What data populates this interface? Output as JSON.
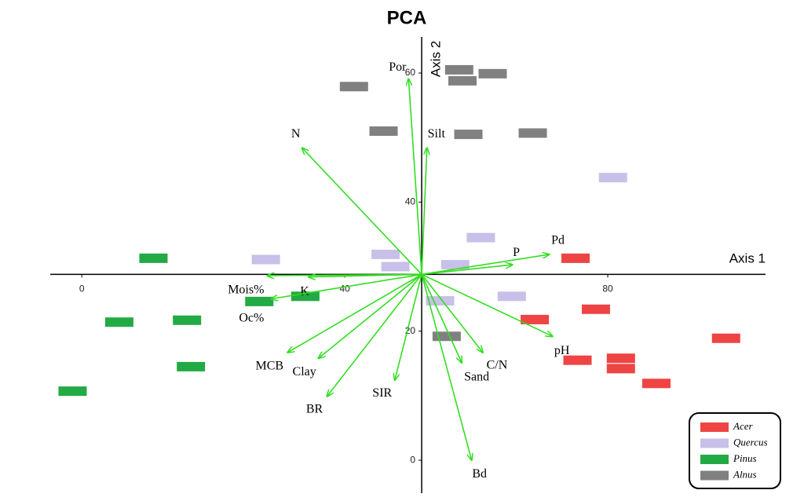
{
  "chart_data": {
    "type": "biplot",
    "title": "PCA",
    "x_label": "Axis 1",
    "y_label": "Axis 2",
    "xlim": [
      -4.8,
      104
    ],
    "ylim": [
      -5.1,
      65.6
    ],
    "origin": [
      51.7,
      28.8
    ],
    "xticks": [
      0,
      40,
      80
    ],
    "yticks": [
      0,
      20,
      40,
      60
    ],
    "legend": "bottom-right",
    "series": [
      {
        "name": "Acer",
        "color": "#ee4444",
        "x": [
          75.1,
          68.9,
          78.2,
          75.4,
          82.0,
          82.0,
          87.4,
          98.0
        ],
        "values": [
          31.3,
          21.8,
          23.4,
          15.5,
          15.8,
          14.2,
          11.9,
          18.9
        ]
      },
      {
        "name": "Quercus",
        "color": "#c8c0e8",
        "x": [
          80.8,
          60.7,
          46.2,
          28.0,
          47.7,
          56.8,
          54.5,
          65.4
        ],
        "values": [
          43.8,
          34.5,
          31.9,
          31.1,
          30.0,
          30.3,
          24.7,
          25.4
        ]
      },
      {
        "name": "Pinus",
        "color": "#22aa44",
        "x": [
          10.9,
          5.7,
          16.0,
          27.0,
          34.0,
          16.6,
          -1.4
        ],
        "values": [
          31.3,
          21.4,
          21.7,
          24.6,
          25.4,
          14.5,
          10.7
        ]
      },
      {
        "name": "Alnus",
        "color": "#808080",
        "x": [
          41.4,
          57.4,
          57.9,
          62.5,
          45.9,
          58.8,
          68.6,
          55.5
        ],
        "values": [
          57.9,
          60.5,
          58.8,
          59.9,
          51.0,
          50.5,
          50.7,
          19.2
        ]
      }
    ],
    "vectors": {
      "color": "#33dd22",
      "names": [
        "Por",
        "N",
        "Silt",
        "P",
        "Pd",
        "pH",
        "C/N",
        "Sand",
        "Bd",
        "SIR",
        "BR",
        "Clay",
        "MCB",
        "Mois%",
        "K",
        "Oc%"
      ],
      "x": [
        49.7,
        33.5,
        52.5,
        65.5,
        71.1,
        71.6,
        61.0,
        57.8,
        59.3,
        47.6,
        37.3,
        36.0,
        31.3,
        28.2,
        34.5,
        28.8
      ],
      "values": [
        59.1,
        48.4,
        48.4,
        30.3,
        31.9,
        19.2,
        16.7,
        15.1,
        0,
        12.4,
        9.9,
        15.8,
        16.7,
        28.6,
        28.4,
        25.0
      ]
    }
  }
}
